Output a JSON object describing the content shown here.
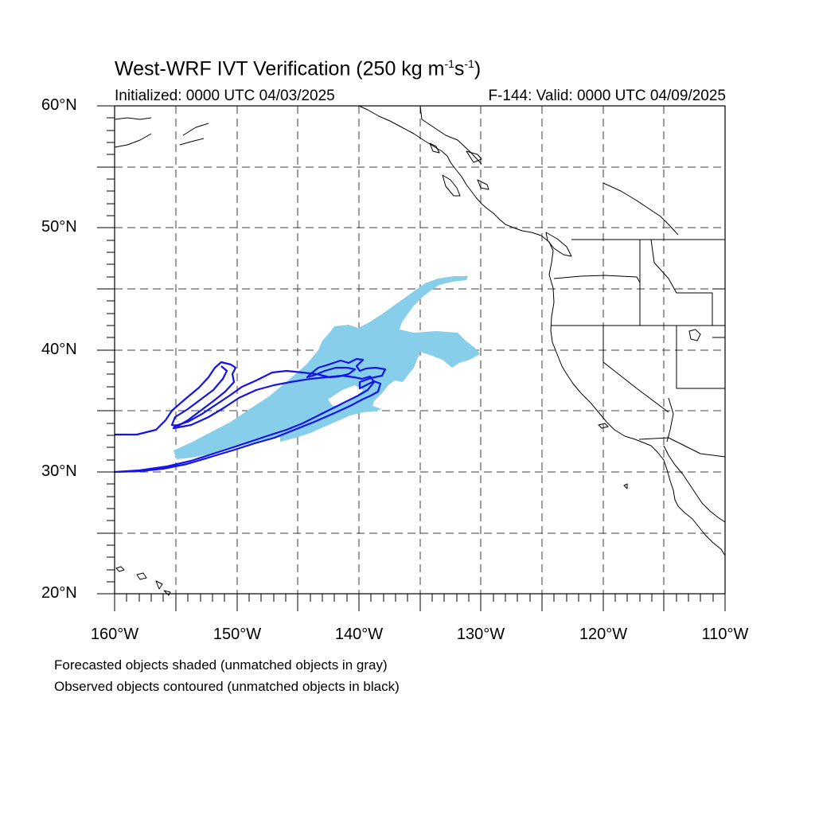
{
  "figure": {
    "title_main": "West-WRF IVT Verification (250 kg m",
    "title_sup1": "-1",
    "title_s": "s",
    "title_sup2": "-1",
    "title_close": ")",
    "initialized": "Initialized: 0000 UTC 04/03/2025",
    "valid": "F-144: Valid: 0000 UTC 04/09/2025",
    "note_forecast": "Forecasted objects shaded (unmatched objects in gray)",
    "note_observed": "Observed objects contoured (unmatched objects in black)"
  },
  "axes": {
    "y_labels": [
      "60°N",
      "50°N",
      "40°N",
      "30°N",
      "20°N"
    ],
    "x_labels": [
      "160°W",
      "150°W",
      "140°W",
      "130°W",
      "120°W",
      "110°W"
    ]
  },
  "colors": {
    "forecast_fill": "#87ceeb",
    "observed_contour": "#1414e6",
    "coastline": "#000000",
    "grid": "#000000"
  }
}
